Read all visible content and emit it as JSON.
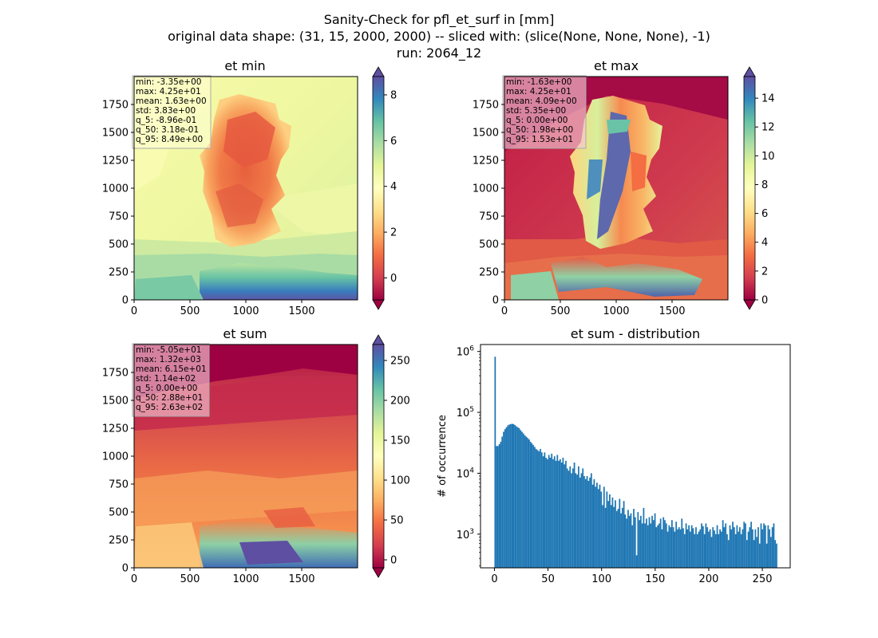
{
  "figure": {
    "suptitle_lines": [
      "Sanity-Check for pfl_et_surf in [mm]",
      "original data shape: (31, 15, 2000, 2000) -- sliced with: (slice(None, None, None), -1)",
      "run: 2064_12"
    ]
  },
  "colormap": {
    "name": "Spectral",
    "stops": [
      "#9e0142",
      "#d53e4f",
      "#f46d43",
      "#fdae61",
      "#fee08b",
      "#ffffbf",
      "#e6f598",
      "#abdda4",
      "#66c2a5",
      "#3288bd",
      "#5e4fa2"
    ]
  },
  "chart_data": [
    {
      "type": "heatmap",
      "title": "et min",
      "xlim": [
        0,
        2000
      ],
      "ylim": [
        0,
        2000
      ],
      "xticks": [
        "0",
        "500",
        "1000",
        "1500"
      ],
      "yticks": [
        "0",
        "250",
        "500",
        "750",
        "1000",
        "1250",
        "1500",
        "1750"
      ],
      "colorbar": {
        "vmin": -0.96,
        "vmax": 8.8,
        "ticks": [
          "0",
          "2",
          "4",
          "6",
          "8"
        ],
        "extend": "both"
      },
      "stats": [
        "min: -3.35e+00",
        "max: 4.25e+01",
        "mean: 1.63e+00",
        "std: 3.83e+00",
        "q_5: -8.96e-01",
        "q_50: 3.18e-01",
        "q_95: 8.49e+00"
      ],
      "stats_box_color": "#ffffd9"
    },
    {
      "type": "heatmap",
      "title": "et max",
      "xlim": [
        0,
        2000
      ],
      "ylim": [
        0,
        2000
      ],
      "xticks": [
        "0",
        "500",
        "1000",
        "1500"
      ],
      "yticks": [
        "0",
        "250",
        "500",
        "750",
        "1000",
        "1250",
        "1500",
        "1750"
      ],
      "colorbar": {
        "vmin": 0,
        "vmax": 15.5,
        "ticks": [
          "0",
          "2",
          "4",
          "6",
          "8",
          "10",
          "12",
          "14"
        ],
        "extend": "both"
      },
      "stats": [
        "min: -1.63e+00",
        "max: 4.25e+01",
        "mean: 4.09e+00",
        "std: 5.35e+00",
        "q_5: 0.00e+00",
        "q_50: 1.98e+00",
        "q_95: 1.53e+01"
      ],
      "stats_box_color": "#e8a0b4"
    },
    {
      "type": "heatmap",
      "title": "et sum",
      "xlim": [
        0,
        2000
      ],
      "ylim": [
        0,
        2000
      ],
      "xticks": [
        "0",
        "500",
        "1000",
        "1500"
      ],
      "yticks": [
        "0",
        "250",
        "500",
        "750",
        "1000",
        "1250",
        "1500",
        "1750"
      ],
      "colorbar": {
        "vmin": -10,
        "vmax": 270,
        "ticks": [
          "0",
          "50",
          "100",
          "150",
          "200",
          "250"
        ],
        "extend": "both"
      },
      "stats": [
        "min: -5.05e+01",
        "max: 1.32e+03",
        "mean: 6.15e+01",
        "std: 1.14e+02",
        "q_5: 0.00e+00",
        "q_50: 2.88e+01",
        "q_95: 2.63e+02"
      ],
      "stats_box_color": "#e8a0b4"
    },
    {
      "type": "bar",
      "title": "et sum - distribution",
      "ylabel": "# of occurrence",
      "yscale": "log",
      "xlim": [
        -13,
        276
      ],
      "ylim": [
        280,
        1300000
      ],
      "xticks": [
        0,
        50,
        100,
        150,
        200,
        250
      ],
      "yticks": [
        {
          "value": 1000,
          "base": "10",
          "exp": "3"
        },
        {
          "value": 10000,
          "base": "10",
          "exp": "4"
        },
        {
          "value": 100000,
          "base": "10",
          "exp": "5"
        },
        {
          "value": 1000000,
          "base": "10",
          "exp": "6"
        }
      ],
      "bin_width": 1.32,
      "bar_color": "#1f77b4",
      "bins_start": [
        0,
        1.32,
        2.64,
        3.96,
        5.28,
        6.6,
        7.92,
        9.24,
        10.56,
        11.88,
        13.2,
        14.52,
        15.84,
        17.16,
        18.48,
        19.8,
        21.12,
        22.44,
        23.76,
        25.08,
        26.4,
        27.72,
        29.04,
        30.36,
        31.68,
        33,
        34.32,
        35.64,
        36.96,
        38.28,
        39.6,
        40.92,
        42.24,
        43.56,
        44.88,
        46.2,
        47.52,
        48.84,
        50.16,
        51.48,
        52.8,
        54.12,
        55.44,
        56.76,
        58.08,
        59.4,
        60.72,
        62.04,
        63.36,
        64.68,
        66,
        67.32,
        68.64,
        69.96,
        71.28,
        72.6,
        73.92,
        75.24,
        76.56,
        77.88,
        79.2,
        80.52,
        81.84,
        83.16,
        84.48,
        85.8,
        87.12,
        88.44,
        89.76,
        91.08,
        92.4,
        93.72,
        95.04,
        96.36,
        97.68,
        99,
        100.32,
        101.64,
        102.96,
        104.28,
        105.6,
        106.92,
        108.24,
        109.56,
        110.88,
        112.2,
        113.52,
        114.84,
        116.16,
        117.48,
        118.8,
        120.12,
        121.44,
        122.76,
        124.08,
        125.4,
        126.72,
        128.04,
        129.36,
        130.68,
        132,
        133.32,
        134.64,
        135.96,
        137.28,
        138.6,
        139.92,
        141.24,
        142.56,
        143.88,
        145.2,
        146.52,
        147.84,
        149.16,
        150.48,
        151.8,
        153.12,
        154.44,
        155.76,
        157.08,
        158.4,
        159.72,
        161.04,
        162.36,
        163.68,
        165,
        166.32,
        167.64,
        168.96,
        170.28,
        171.6,
        172.92,
        174.24,
        175.56,
        176.88,
        178.2,
        179.52,
        180.84,
        182.16,
        183.48,
        184.8,
        186.12,
        187.44,
        188.76,
        190.08,
        191.4,
        192.72,
        194.04,
        195.36,
        196.68,
        198,
        199.32,
        200.64,
        201.96,
        203.28,
        204.6,
        205.92,
        207.24,
        208.56,
        209.88,
        211.2,
        212.52,
        213.84,
        215.16,
        216.48,
        217.8,
        219.12,
        220.44,
        221.76,
        223.08,
        224.4,
        225.72,
        227.04,
        228.36,
        229.68,
        231,
        232.32,
        233.64,
        234.96,
        236.28,
        237.6,
        238.92,
        240.24,
        241.56,
        242.88,
        244.2,
        245.52,
        246.84,
        248.16,
        249.48,
        250.8,
        252.12,
        253.44,
        254.76,
        256.08,
        257.4,
        258.72,
        260.04,
        261.36,
        262.68
      ],
      "counts": [
        820000,
        28000,
        28000,
        30000,
        33000,
        40000,
        48000,
        53000,
        57000,
        61000,
        63000,
        64000,
        65000,
        64000,
        62000,
        59000,
        57000,
        55000,
        51000,
        48000,
        45000,
        42000,
        40000,
        38000,
        36000,
        33000,
        31000,
        29000,
        27000,
        25000,
        24000,
        23000,
        25000,
        22000,
        19000,
        22000,
        18000,
        17000,
        20000,
        18000,
        21000,
        17000,
        19000,
        16000,
        20000,
        16000,
        17000,
        15000,
        18000,
        14000,
        16000,
        12000,
        11000,
        13000,
        10000,
        12000,
        15000,
        10000,
        9500,
        13000,
        8500,
        10000,
        12000,
        9000,
        8000,
        9000,
        7500,
        8500,
        10000,
        6500,
        8000,
        6000,
        7000,
        5500,
        6500,
        5000,
        3000,
        6000,
        2700,
        5000,
        3500,
        4500,
        3000,
        4000,
        2800,
        3600,
        2400,
        2600,
        3800,
        2200,
        2700,
        3500,
        2100,
        1800,
        2500,
        2000,
        2200,
        1400,
        2600,
        1900,
        450,
        2300,
        1700,
        2000,
        1500,
        2700,
        1500,
        1800,
        1400,
        1900,
        1500,
        2000,
        1700,
        2200,
        1300,
        1400,
        1500,
        1800,
        1200,
        1900,
        1700,
        1500,
        1100,
        1400,
        1300,
        1700,
        1300,
        1100,
        1600,
        1200,
        1300,
        1200,
        1800,
        1250,
        1000,
        1500,
        1200,
        1400,
        1100,
        1400,
        1250,
        1000,
        1300,
        1000,
        1100,
        1200,
        1500,
        1350,
        1000,
        1500,
        1300,
        1100,
        1200,
        900,
        1300,
        1150,
        1000,
        1400,
        1000,
        1200,
        1100,
        1700,
        1300,
        1500,
        1000,
        800,
        1400,
        1200,
        1600,
        1300,
        1000,
        1400,
        1100,
        1300,
        1000,
        1200,
        1600,
        1500,
        800,
        1100,
        1300,
        1600,
        1200,
        800,
        1200,
        900,
        1300,
        700,
        1500,
        1200,
        1500,
        1400,
        700,
        1400,
        1200,
        900,
        1300,
        1500,
        800,
        700,
        1300
      ]
    }
  ]
}
